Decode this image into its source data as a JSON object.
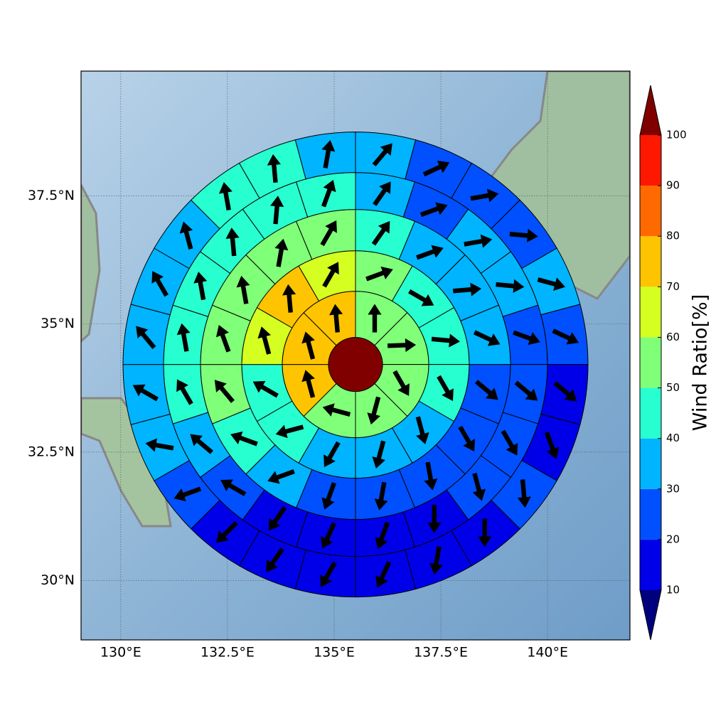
{
  "chart_data": {
    "type": "sectormap",
    "xlim": [
      129.07,
      141.93
    ],
    "ylim": [
      28.84,
      39.93
    ],
    "xticks": [
      {
        "value": 130,
        "label": "130°E"
      },
      {
        "value": 132.5,
        "label": "132.5°E"
      },
      {
        "value": 135,
        "label": "135°E"
      },
      {
        "value": 137.5,
        "label": "137.5°E"
      },
      {
        "value": 140,
        "label": "140°E"
      }
    ],
    "yticks": [
      {
        "value": 30,
        "label": "30°N"
      },
      {
        "value": 32.5,
        "label": "32.5°N"
      },
      {
        "value": 35,
        "label": "35°N"
      },
      {
        "value": 37.5,
        "label": "37.5°N"
      }
    ],
    "grid": true,
    "center": {
      "lon": 135.5,
      "lat": 34.21,
      "value": 105
    },
    "rings": [
      {
        "values": [
          55,
          55,
          55,
          55,
          55,
          75,
          75,
          75
        ],
        "directions": [
          0,
          88,
          150,
          195,
          285,
          345,
          345,
          355
        ]
      },
      {
        "values": [
          55,
          45,
          45,
          45,
          35,
          35,
          35,
          45,
          45,
          65,
          75,
          65
        ],
        "directions": [
          70,
          120,
          95,
          150,
          165,
          195,
          210,
          255,
          300,
          345,
          355,
          30
        ]
      },
      {
        "values": [
          45,
          35,
          35,
          35,
          25,
          25,
          25,
          25,
          25,
          35,
          45,
          55,
          55,
          55,
          55,
          55
        ],
        "directions": [
          35,
          70,
          85,
          115,
          130,
          150,
          170,
          190,
          200,
          250,
          290,
          320,
          340,
          350,
          10,
          30
        ]
      },
      {
        "values": [
          35,
          25,
          35,
          35,
          25,
          25,
          25,
          25,
          15,
          15,
          15,
          15,
          25,
          35,
          45,
          45,
          45,
          45,
          45,
          45
        ],
        "directions": [
          35,
          70,
          80,
          95,
          110,
          130,
          150,
          165,
          180,
          200,
          205,
          215,
          300,
          310,
          330,
          350,
          350,
          355,
          5,
          20
        ]
      },
      {
        "values": [
          35,
          25,
          25,
          25,
          35,
          25,
          15,
          15,
          25,
          15,
          15,
          15,
          15,
          15,
          15,
          25,
          35,
          35,
          35,
          35,
          35,
          45,
          45,
          35
        ],
        "directions": [
          40,
          65,
          80,
          95,
          105,
          115,
          130,
          160,
          175,
          180,
          190,
          205,
          210,
          215,
          225,
          250,
          280,
          300,
          320,
          330,
          345,
          350,
          355,
          10
        ]
      }
    ],
    "colorbar": {
      "label": "Wind Ratio[%]",
      "ticks": [
        10,
        20,
        30,
        40,
        50,
        60,
        70,
        80,
        90,
        100
      ],
      "colors": [
        "#0000e8",
        "#0050ff",
        "#00b4ff",
        "#28ffd0",
        "#80ff78",
        "#d4ff20",
        "#ffc400",
        "#ff6a00",
        "#ff1800"
      ],
      "under": "#00007f",
      "over": "#800000"
    }
  }
}
